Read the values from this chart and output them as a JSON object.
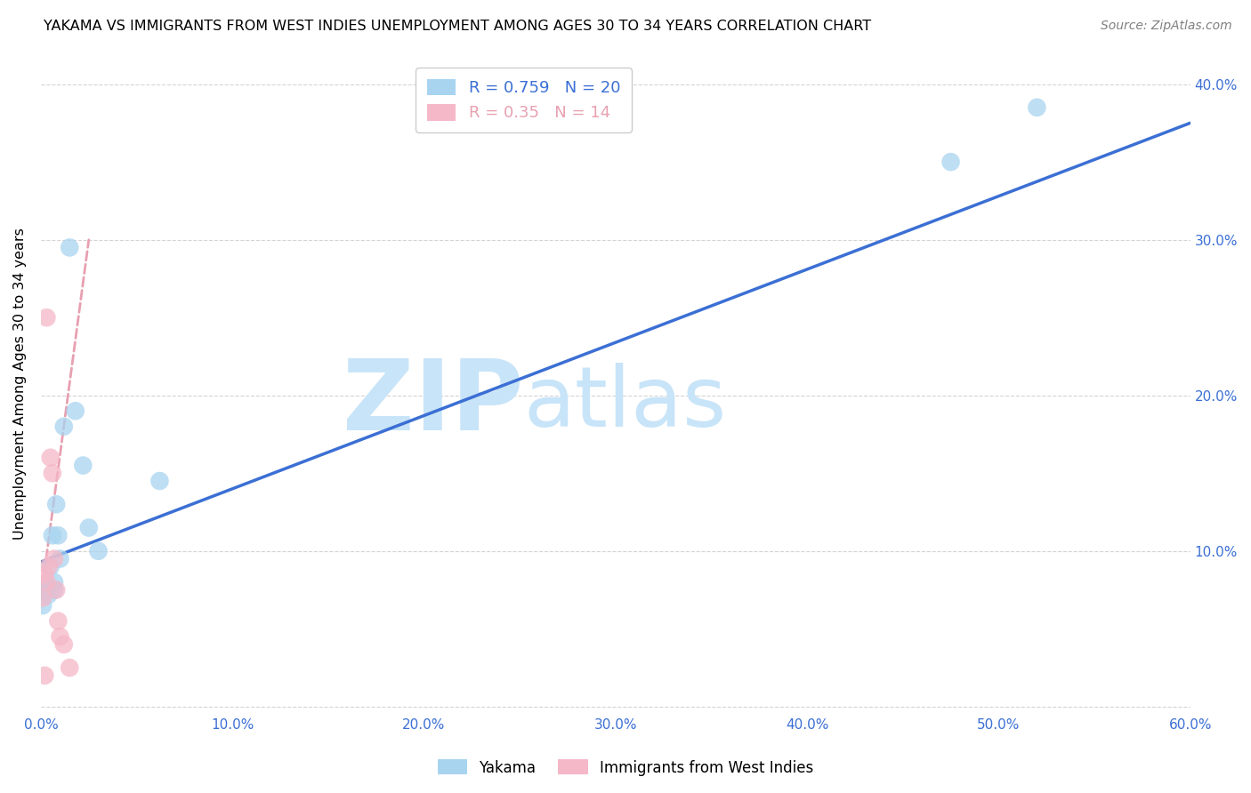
{
  "title": "YAKAMA VS IMMIGRANTS FROM WEST INDIES UNEMPLOYMENT AMONG AGES 30 TO 34 YEARS CORRELATION CHART",
  "source": "Source: ZipAtlas.com",
  "ylabel": "Unemployment Among Ages 30 to 34 years",
  "xlim": [
    0.0,
    0.6
  ],
  "ylim": [
    -0.005,
    0.42
  ],
  "xticks": [
    0.0,
    0.1,
    0.2,
    0.3,
    0.4,
    0.5,
    0.6
  ],
  "yticks": [
    0.0,
    0.1,
    0.2,
    0.3,
    0.4
  ],
  "xtick_labels": [
    "0.0%",
    "10.0%",
    "20.0%",
    "30.0%",
    "40.0%",
    "50.0%",
    "60.0%"
  ],
  "ytick_labels_right": [
    "",
    "10.0%",
    "20.0%",
    "30.0%",
    "40.0%"
  ],
  "yakama_x": [
    0.001,
    0.002,
    0.003,
    0.004,
    0.005,
    0.006,
    0.007,
    0.008,
    0.01,
    0.012,
    0.015,
    0.018,
    0.022,
    0.025,
    0.03,
    0.475,
    0.52,
    0.062,
    0.007,
    0.009
  ],
  "yakama_y": [
    0.065,
    0.075,
    0.078,
    0.072,
    0.09,
    0.11,
    0.08,
    0.13,
    0.095,
    0.18,
    0.295,
    0.19,
    0.155,
    0.115,
    0.1,
    0.35,
    0.385,
    0.145,
    0.075,
    0.11
  ],
  "westindies_x": [
    0.001,
    0.002,
    0.003,
    0.004,
    0.005,
    0.006,
    0.007,
    0.008,
    0.009,
    0.01,
    0.012,
    0.015,
    0.003,
    0.002
  ],
  "westindies_y": [
    0.07,
    0.085,
    0.08,
    0.09,
    0.16,
    0.15,
    0.095,
    0.075,
    0.055,
    0.045,
    0.04,
    0.025,
    0.25,
    0.02
  ],
  "yakama_color": "#a8d4f0",
  "westindies_color": "#f5b8c8",
  "line_blue": "#3b6fd4",
  "line_pink": "#e8a0b0",
  "R_yakama": 0.759,
  "N_yakama": 20,
  "R_westindies": 0.35,
  "N_westindies": 14,
  "watermark_zip": "ZIP",
  "watermark_atlas": "atlas",
  "watermark_color": "#c8e4f8",
  "grid_color": "#d0d0d0",
  "axis_color": "#3b6fd4",
  "background_color": "#ffffff",
  "blue_line_x": [
    0.0,
    0.6
  ],
  "blue_line_y": [
    0.093,
    0.375
  ],
  "pink_line_x": [
    0.0,
    0.025
  ],
  "pink_line_y": [
    0.07,
    0.3
  ]
}
